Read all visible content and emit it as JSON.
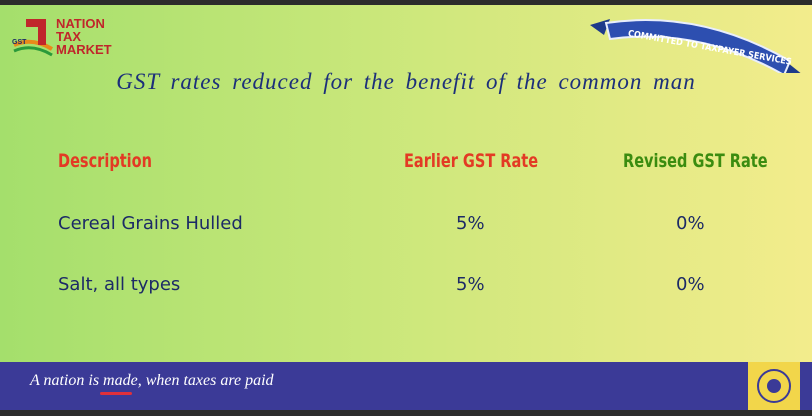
{
  "logo": {
    "lines": [
      "NATION",
      "TAX",
      "MARKET"
    ],
    "badge": "GST"
  },
  "ribbon": "COMMITTED TO TAXPAYER SERVICES",
  "title": "GST rates reduced for the benefit of the common man",
  "table": {
    "header": [
      "Description",
      "Earlier GST Rate",
      "Revised GST Rate"
    ],
    "rows": [
      [
        "Cereal Grains Hulled",
        "5%",
        "0%"
      ],
      [
        "Salt, all types",
        "5%",
        "0%"
      ]
    ]
  },
  "footer": {
    "tagline": "A nation is made, when taxes are paid"
  }
}
